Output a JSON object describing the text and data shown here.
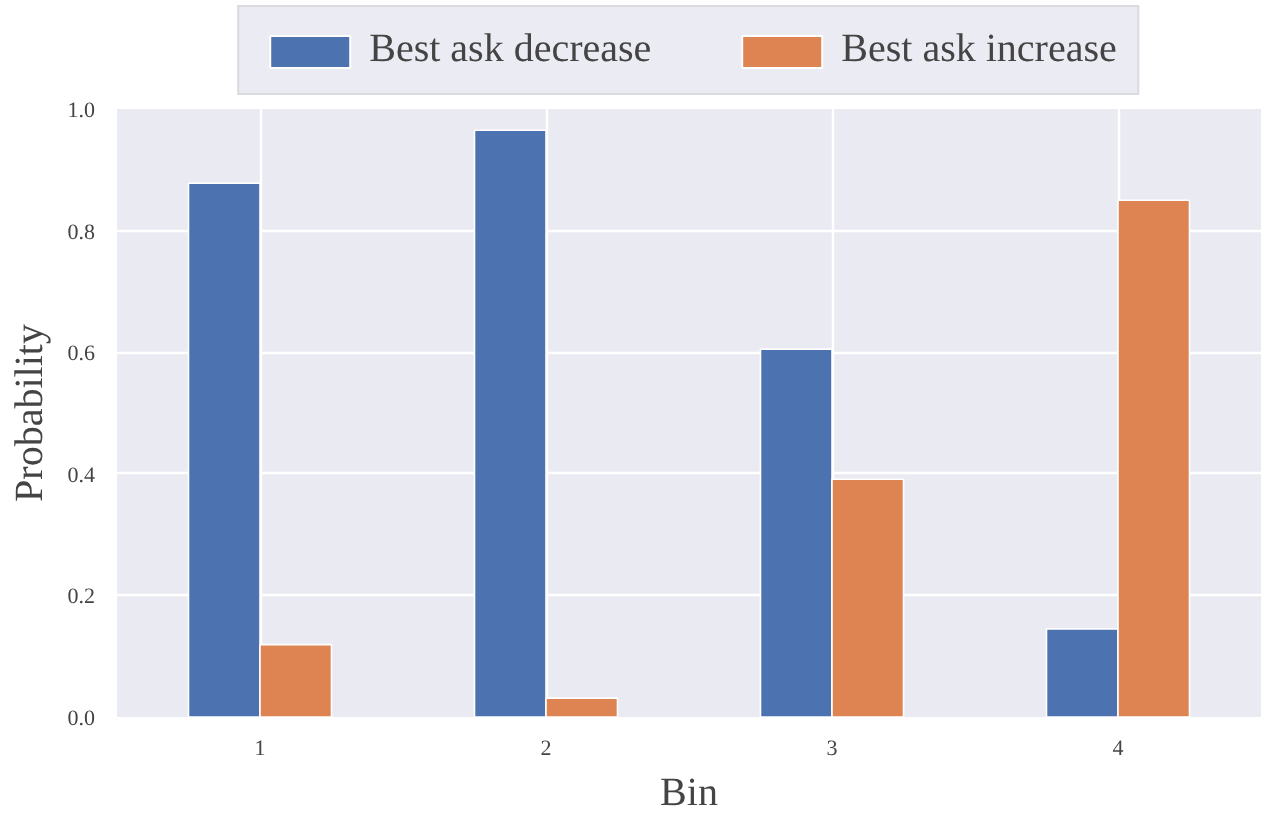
{
  "chart_data": {
    "type": "bar",
    "xlabel": "Bin",
    "ylabel": "Probability",
    "categories": [
      "1",
      "2",
      "3",
      "4"
    ],
    "series": [
      {
        "name": "Best ask decrease",
        "color": "#4c72b0",
        "values": [
          0.878,
          0.965,
          0.605,
          0.145
        ]
      },
      {
        "name": "Best ask increase",
        "color": "#dd8452",
        "values": [
          0.119,
          0.031,
          0.391,
          0.85
        ]
      }
    ],
    "ylim": [
      0,
      1.0
    ],
    "yticks": [
      {
        "value": 0,
        "label": "0.0"
      },
      0.2,
      0.4,
      0.6,
      0.8,
      {
        "value": 1,
        "label": "1.0"
      }
    ],
    "grid": true,
    "legend": "top"
  }
}
